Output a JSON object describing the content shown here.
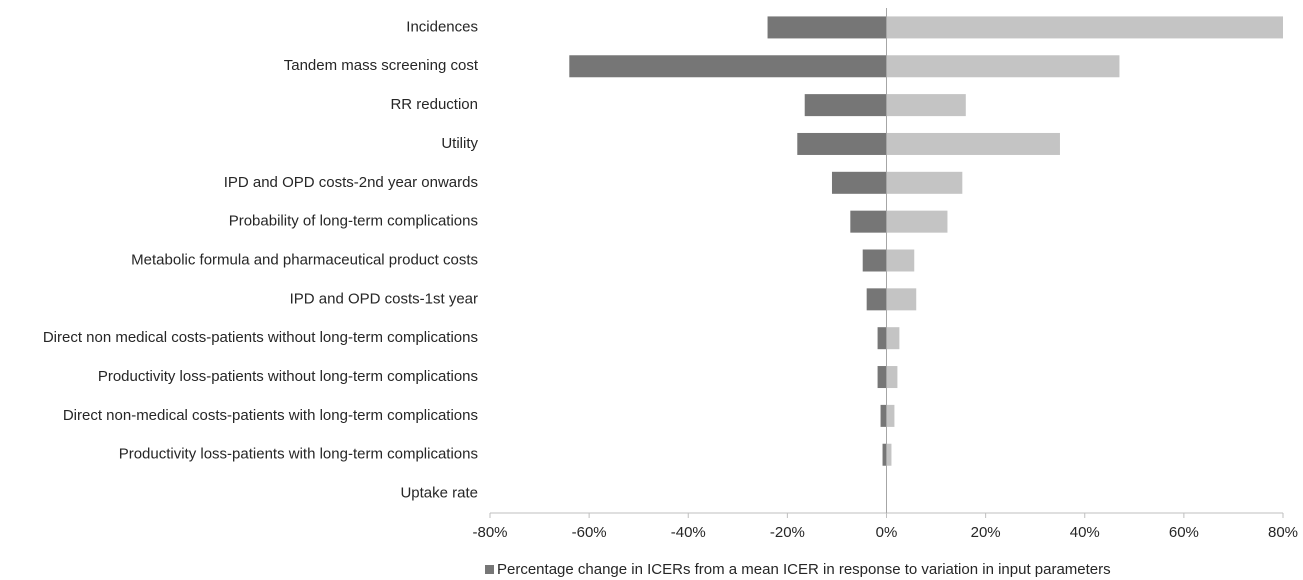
{
  "chart_data": {
    "type": "tornado",
    "categories": [
      "Incidences",
      "Tandem mass screening cost",
      "RR reduction",
      "Utility",
      "IPD and OPD costs-2nd year onwards",
      "Probability of long-term complications",
      "Metabolic formula  and pharmaceutical product costs",
      "IPD and OPD costs-1st year",
      "Direct non medical costs-patients without long-term complications",
      "Productivity loss-patients without long-term complications",
      "Direct non-medical costs-patients with long-term complications",
      "Productivity loss-patients with long-term complications",
      "Uptake rate"
    ],
    "series": [
      {
        "name": "Percentage change in ICERs from a mean ICER in response to variation in input parameters",
        "color": "#767676",
        "values": [
          -24,
          -64,
          -16.5,
          -18,
          -11,
          -7.3,
          -4.8,
          -4,
          -1.8,
          -1.8,
          -1.2,
          -0.8,
          0
        ]
      },
      {
        "color": "#c4c4c4",
        "values": [
          80,
          47,
          16,
          35,
          15.3,
          12.3,
          5.6,
          6,
          2.6,
          2.2,
          1.6,
          1,
          0
        ]
      }
    ],
    "xlim": [
      -80,
      80
    ],
    "xticks": [
      {
        "value": -80,
        "label": "-80%"
      },
      {
        "value": -60,
        "label": "-60%"
      },
      {
        "value": -40,
        "label": "-40%"
      },
      {
        "value": -20,
        "label": "-20%"
      },
      {
        "value": 0,
        "label": "0%"
      },
      {
        "value": 20,
        "label": "20%"
      },
      {
        "value": 40,
        "label": "40%"
      },
      {
        "value": 60,
        "label": "60%"
      },
      {
        "value": 80,
        "label": "80%"
      }
    ],
    "legend": "bottom"
  }
}
